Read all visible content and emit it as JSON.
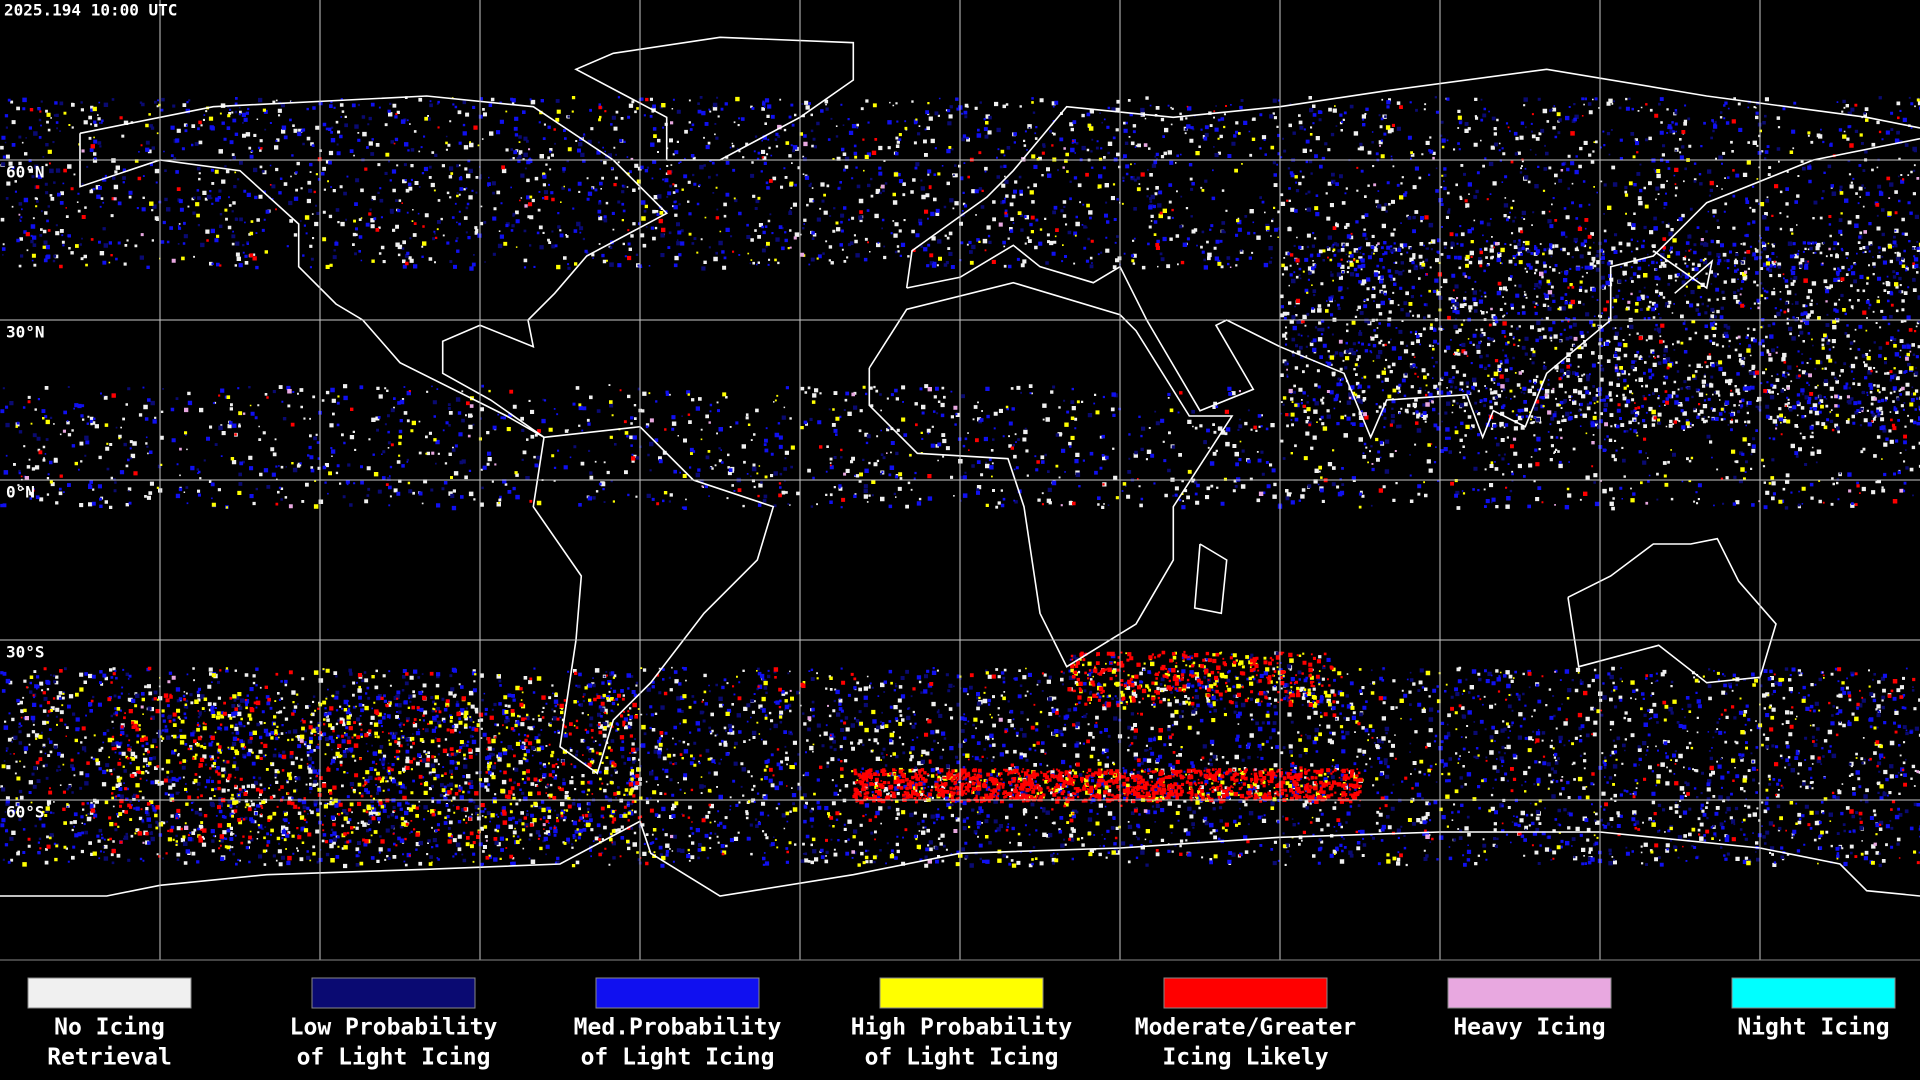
{
  "header": {
    "title": "2025.194 10:00 UTC"
  },
  "map": {
    "latitude_labels": [
      "60°N",
      "30°N",
      "0°N",
      "30°S",
      "60°S"
    ]
  },
  "legend": [
    {
      "lines": [
        "No Icing",
        "Retrieval"
      ],
      "color": "#f0f0f0"
    },
    {
      "lines": [
        "Low Probability",
        "of Light Icing"
      ],
      "color": "#0a0a72"
    },
    {
      "lines": [
        "Med.Probability",
        "of Light Icing"
      ],
      "color": "#1010f0"
    },
    {
      "lines": [
        "High Probability",
        "of Light Icing"
      ],
      "color": "#ffff00"
    },
    {
      "lines": [
        "Moderate/Greater",
        "Icing Likely"
      ],
      "color": "#ff0000"
    },
    {
      "lines": [
        "Heavy Icing"
      ],
      "color": "#e8a8e0"
    },
    {
      "lines": [
        "Night Icing"
      ],
      "color": "#00ffff"
    }
  ]
}
